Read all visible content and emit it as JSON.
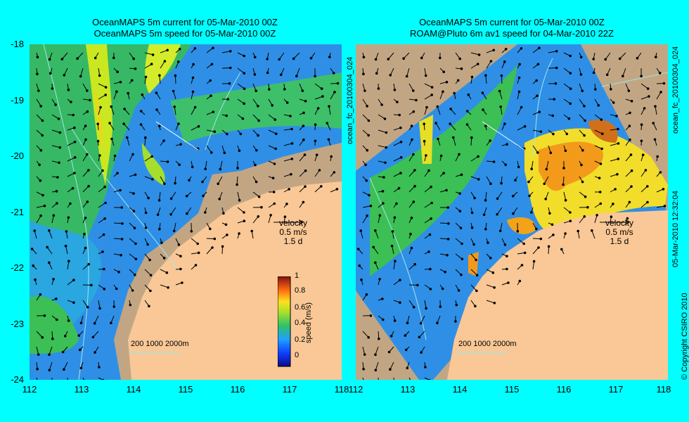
{
  "left_panel": {
    "title_line1": "OceanMAPS 5m current for 05-Mar-2010 00Z",
    "title_line2": "OceanMAPS 5m speed for 05-Mar-2010 00Z",
    "velocity_label": "velocity",
    "velocity_scale": "0.5 m/s",
    "velocity_time": "1.5 d",
    "depth_contours": "200  1000  2000m",
    "colorbar_title": "speed (m/s)",
    "colorbar_ticks": [
      "1",
      "0.8",
      "0.6",
      "0.4",
      "0.2",
      "0"
    ]
  },
  "right_panel": {
    "title_line1": "OceanMAPS 5m current for 05-Mar-2010 00Z",
    "title_line2": "ROAM@Pluto 6m av1 speed for 04-Mar-2010 22Z",
    "velocity_label": "velocity",
    "velocity_scale": "0.5 m/s",
    "velocity_time": "1.5 d",
    "depth_contours": "200  1000  2000m"
  },
  "axes": {
    "y_ticks": [
      "-18",
      "-19",
      "-20",
      "-21",
      "-22",
      "-23",
      "-24"
    ],
    "x_ticks_left": [
      "112",
      "113",
      "114",
      "115",
      "116",
      "117",
      "118"
    ],
    "x_ticks_right": [
      "112",
      "113",
      "114",
      "115",
      "116",
      "117",
      "118"
    ]
  },
  "side_text": {
    "file_id_1": "ocean_fc_20100304_024",
    "file_id_2": "ocean_fc_20100304_024",
    "timestamp": "05-Mar-2010 12:32:04",
    "copyright": "© Copyright CSIRO 2010"
  },
  "colors": {
    "land": "#c2a684",
    "mask": "#f9c896",
    "background": "#00ffff"
  }
}
